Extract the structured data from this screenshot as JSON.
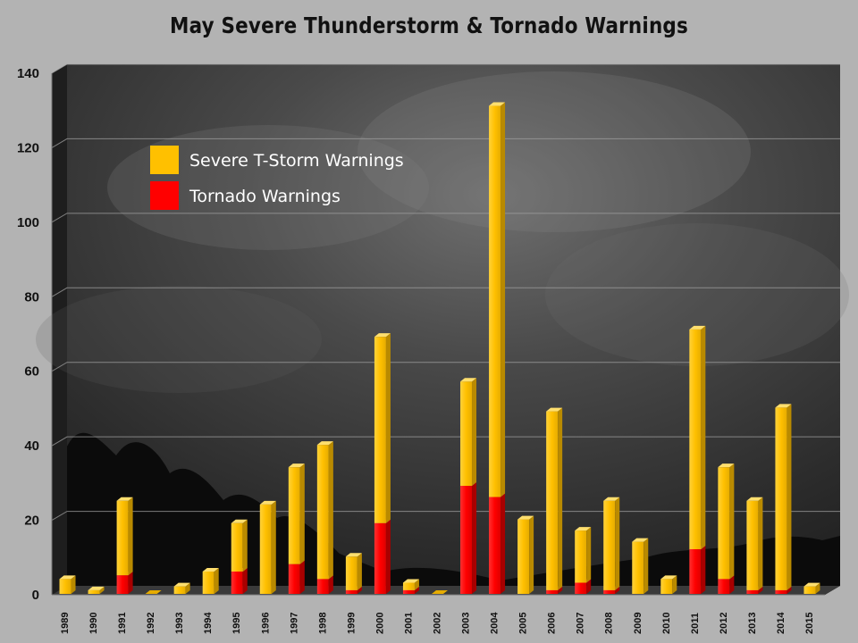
{
  "chart_data": {
    "type": "bar",
    "stacked": true,
    "title": "May Severe Thunderstorm & Tornado Warnings",
    "xlabel": "",
    "ylabel": "",
    "ylim": [
      0,
      140
    ],
    "yticks": [
      0,
      20,
      40,
      60,
      80,
      100,
      120,
      140
    ],
    "grid": true,
    "legend_position": "top-left",
    "categories": [
      "1989",
      "1990",
      "1991",
      "1992",
      "1993",
      "1994",
      "1995",
      "1996",
      "1997",
      "1998",
      "1999",
      "2000",
      "2001",
      "2002",
      "2003",
      "2004",
      "2005",
      "2006",
      "2007",
      "2008",
      "2009",
      "2010",
      "2011",
      "2012",
      "2013",
      "2014",
      "2015"
    ],
    "totals": [
      4,
      1,
      25,
      0,
      2,
      6,
      19,
      24,
      34,
      40,
      10,
      69,
      3,
      0,
      57,
      131,
      20,
      49,
      17,
      25,
      14,
      4,
      71,
      34,
      25,
      50,
      2
    ],
    "series": [
      {
        "name": "Severe T-Storm Warnings",
        "color": "#ffc000"
      },
      {
        "name": "Tornado Warnings",
        "color": "#ff0000",
        "values": [
          0,
          0,
          5,
          0,
          0,
          0,
          6,
          0,
          8,
          4,
          1,
          19,
          1,
          0,
          29,
          26,
          0,
          1,
          3,
          1,
          0,
          0,
          12,
          4,
          1,
          1,
          0
        ]
      }
    ]
  }
}
